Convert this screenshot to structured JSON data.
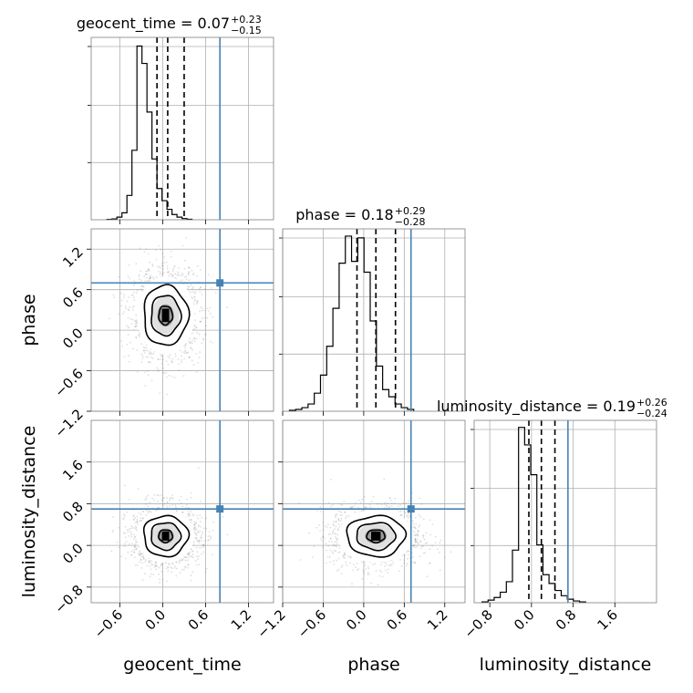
{
  "chart_data": {
    "type": "corner",
    "parameters": [
      {
        "name": "geocent_time",
        "label": "geocent_time",
        "title": {
          "base": "geocent_time = 0.07",
          "plus": "+0.23",
          "minus": "−0.15"
        },
        "range": [
          -1.0,
          1.55
        ],
        "ticks": [
          -0.6,
          0.0,
          0.6,
          1.2
        ],
        "tick_labels": [
          "−0.6",
          "0.0",
          "0.6",
          "1.2"
        ],
        "truth": 0.8,
        "quantiles": [
          -0.08,
          0.07,
          0.3
        ],
        "hist": {
          "start": -0.78,
          "bin_width": 0.07,
          "values": [
            0.2,
            0.5,
            1.5,
            4.0,
            14.0,
            40.0,
            100.0,
            90.0,
            62.0,
            35.0,
            18.0,
            11.0,
            6.0,
            3.0,
            1.5,
            0.7,
            0.3
          ]
        },
        "hist_ymax": 105
      },
      {
        "name": "phase",
        "label": "phase",
        "title": {
          "base": "phase = 0.18",
          "plus": "+0.29",
          "minus": "−0.28"
        },
        "range": [
          -1.2,
          1.5
        ],
        "ticks": [
          -1.2,
          -0.6,
          0.0,
          0.6,
          1.2
        ],
        "tick_labels": [
          "−1.2",
          "−0.6",
          "0.0",
          "0.6",
          "1.2"
        ],
        "truth": 0.7,
        "quantiles": [
          -0.1,
          0.18,
          0.47
        ],
        "hist": {
          "start": -1.1,
          "bin_width": 0.092,
          "values": [
            0.5,
            1.0,
            2.0,
            4.0,
            10.0,
            20.0,
            36.0,
            57.0,
            82.0,
            97.0,
            83.0,
            96.0,
            77.0,
            50.0,
            25.0,
            12.0,
            8.0,
            4.0,
            2.0,
            1.0
          ]
        },
        "hist_ymax": 101
      },
      {
        "name": "luminosity_distance",
        "label": "luminosity_distance",
        "title": {
          "base": "luminosity_distance = 0.19",
          "plus": "+0.26",
          "minus": "−0.24"
        },
        "range": [
          -1.1,
          2.4
        ],
        "ticks": [
          -0.8,
          0.0,
          0.8,
          1.6
        ],
        "tick_labels": [
          "−0.8",
          "0.0",
          "0.8",
          "1.6"
        ],
        "truth": 0.7,
        "quantiles": [
          -0.05,
          0.19,
          0.45
        ],
        "hist": {
          "start": -0.95,
          "bin_width": 0.117,
          "values": [
            0.5,
            1.5,
            3.0,
            6.0,
            12.0,
            30.0,
            100.0,
            90.0,
            73.0,
            33.0,
            16.0,
            11.0,
            7.0,
            4.0,
            2.0,
            1.0,
            0.5
          ]
        },
        "hist_ymax": 104
      }
    ],
    "pairs": [
      {
        "x": "geocent_time",
        "y": "phase",
        "center": [
          0.04,
          0.22
        ],
        "spread": [
          0.23,
          0.33
        ],
        "contours": [
          0.1,
          0.3,
          0.5,
          0.75
        ],
        "truth": [
          0.8,
          0.7
        ]
      },
      {
        "x": "geocent_time",
        "y": "luminosity_distance",
        "center": [
          0.04,
          0.18
        ],
        "spread": [
          0.23,
          0.29
        ],
        "contours": [
          0.1,
          0.3,
          0.5,
          0.75
        ],
        "truth": [
          0.8,
          0.7
        ]
      },
      {
        "x": "phase",
        "y": "luminosity_distance",
        "center": [
          0.18,
          0.18
        ],
        "spread": [
          0.32,
          0.29
        ],
        "contours": [
          0.1,
          0.3,
          0.5,
          0.75
        ],
        "truth": [
          0.7,
          0.7
        ]
      }
    ],
    "grid": true,
    "colors": {
      "truth": "#4682b4",
      "hist": "#000000",
      "samples": "#808080"
    }
  }
}
